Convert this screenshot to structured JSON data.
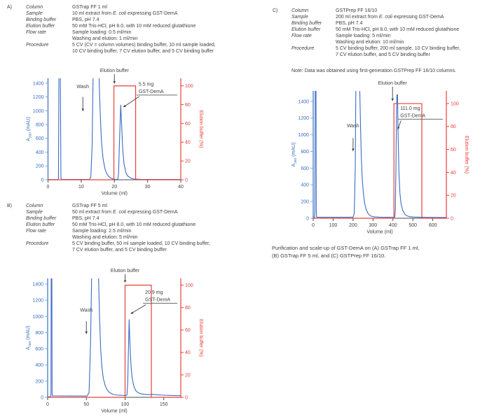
{
  "figure": {
    "caption_lines": [
      "Purification and scale-up of GST-DemA on (A) GSTrap FF 1 ml,",
      "(B) GSTrap FF 5 ml, and (C) GSTPrep FF 16/10."
    ]
  },
  "colors": {
    "blue": "#3a6cc3",
    "red": "#e8403a",
    "text": "#3f3f3f",
    "tick_blue": "#79b2d0",
    "underline": "#6b6b6b",
    "axis_dark": "#4a4a4a"
  },
  "panels": [
    {
      "label": "A)",
      "fields": [
        {
          "label": "Column",
          "lines": [
            "GSTrap FF 1 ml"
          ]
        },
        {
          "label": "Sample",
          "lines": [
            "10 ml extract from E. coli expressing GST-DemA"
          ]
        },
        {
          "label": "Binding buffer",
          "lines": [
            "PBS, pH 7.4"
          ]
        },
        {
          "label": "Elution buffer",
          "lines": [
            "50 mM Tris-HCl, pH 8.0, with 10 mM reduced glutathione"
          ]
        },
        {
          "label": "Flow rate",
          "lines": [
            "Sample loading: 0.5 ml/min",
            "Washing and elution: 1 ml/min"
          ]
        },
        {
          "label": "Procedure",
          "lines": [
            "5 CV (CV = column volumes) binding buffer, 10 ml sample loaded,",
            "10 CV binding buffer, 7 CV elution buffer, and 5 CV binding buffer"
          ]
        }
      ]
    },
    {
      "label": "B)",
      "fields": [
        {
          "label": "Column",
          "lines": [
            "GSTrap FF 5 ml"
          ]
        },
        {
          "label": "Sample",
          "lines": [
            "50 ml extract from E. coli expressing GST-DemA"
          ]
        },
        {
          "label": "Binding buffer",
          "lines": [
            "PBS, pH 7.4"
          ]
        },
        {
          "label": "Elution buffer",
          "lines": [
            "50 mM Tris-HCl, pH 8.0, with 10 mM reduced glutathione"
          ]
        },
        {
          "label": "Flow rate",
          "lines": [
            "Sample loading: 2.5 ml/min",
            "Washing and elution: 5 ml/min"
          ]
        },
        {
          "label": "Procedure",
          "lines": [
            "5 CV binding buffer, 50 ml sample loaded, 10 CV binding buffer,",
            "7 CV elution buffer, and 5 CV binding buffer"
          ]
        }
      ]
    },
    {
      "label": "C)",
      "fields": [
        {
          "label": "Column",
          "lines": [
            "GSTPrep FF 16/10"
          ]
        },
        {
          "label": "Sample",
          "lines": [
            "200 ml extract from E. coli expressing GST-DemA"
          ]
        },
        {
          "label": "Binding buffer",
          "lines": [
            "PBS, pH 7.4"
          ]
        },
        {
          "label": "Elution buffer",
          "lines": [
            "50 mM Tris-HCl, pH 8.0, with 10 mM reduced glutathione"
          ]
        },
        {
          "label": "Flow rate",
          "lines": [
            "Sample loading: 5 ml/min",
            "Washing and elution: 10 ml/min"
          ]
        },
        {
          "label": "Procedure",
          "lines": [
            "5 CV binding buffer, 200 ml sample, 10 CV binding buffer,",
            "7 CV elution buffer, and 5 CV binding buffer"
          ]
        }
      ],
      "note": "Note: Data was obtained using first-generation GSTPrep FF 16/10 columns."
    }
  ],
  "chart_data": [
    {
      "id": "A",
      "type": "line",
      "xlabel": "Volume (ml)",
      "ylabel_left": {
        "pre": "A",
        "sub": "280",
        "post": " (mAU)"
      },
      "ylabel_right": "Elution buffer (%)",
      "xlim": [
        0,
        40
      ],
      "xticks": [
        0,
        10,
        20,
        30,
        40
      ],
      "ylim_left": [
        0,
        1470
      ],
      "yticks_left": [
        0,
        200,
        400,
        600,
        800,
        1000,
        1200,
        1400
      ],
      "ylim_right": [
        0,
        108
      ],
      "yticks_right": [
        0,
        20,
        40,
        60,
        80,
        100
      ],
      "series": [
        {
          "name": "A280 absorbance",
          "axis": "left",
          "color_key": "blue",
          "points": [
            [
              0,
              3
            ],
            [
              3.0,
              3
            ],
            [
              3.15,
              15
            ],
            [
              3.3,
              1600
            ],
            [
              3.7,
              1600
            ],
            [
              3.9,
              20
            ],
            [
              4.1,
              4
            ],
            [
              12.5,
              4
            ],
            [
              12.9,
              40
            ],
            [
              13.3,
              500
            ],
            [
              13.6,
              1600
            ],
            [
              15.3,
              1600
            ],
            [
              15.7,
              1000
            ],
            [
              16.1,
              560
            ],
            [
              16.6,
              300
            ],
            [
              17.2,
              150
            ],
            [
              17.9,
              70
            ],
            [
              18.7,
              30
            ],
            [
              19.5,
              12
            ],
            [
              20.3,
              6
            ],
            [
              21.0,
              7
            ],
            [
              21.25,
              80
            ],
            [
              21.5,
              500
            ],
            [
              21.9,
              1080
            ],
            [
              22.2,
              780
            ],
            [
              22.5,
              450
            ],
            [
              22.9,
              230
            ],
            [
              23.4,
              110
            ],
            [
              24.0,
              55
            ],
            [
              24.8,
              28
            ],
            [
              25.6,
              14
            ],
            [
              26.6,
              9
            ],
            [
              28,
              6
            ],
            [
              32,
              5
            ],
            [
              40,
              4
            ]
          ]
        },
        {
          "name": "Elution buffer %",
          "axis": "right",
          "color_key": "red",
          "points": [
            [
              0,
              0
            ],
            [
              19.85,
              0
            ],
            [
              19.85,
              100
            ],
            [
              26.4,
              100
            ],
            [
              26.4,
              0
            ],
            [
              40,
              0
            ]
          ]
        }
      ],
      "annotations": {
        "wash": {
          "label": "Wash",
          "x": 10.5,
          "text_y": 1330,
          "arrow_from_y": 1200,
          "arrow_to_y": 990
        },
        "elution": {
          "label": "Elution buffer",
          "x": 20
        },
        "peak": {
          "lines": [
            "5.5 mg",
            "GST-DemA"
          ],
          "x": 27.3,
          "y": 1365,
          "arrow_x": 22.6,
          "arrow_y": 1050
        }
      }
    },
    {
      "id": "B",
      "type": "line",
      "xlabel": "Volume (ml)",
      "ylabel_left": {
        "pre": "A",
        "sub": "280",
        "post": " (mAU)"
      },
      "ylabel_right": "Elution buffer (%)",
      "xlim": [
        0,
        172
      ],
      "xticks": [
        0,
        50,
        100,
        150
      ],
      "ylim_left": [
        0,
        1470
      ],
      "yticks_left": [
        0,
        200,
        400,
        600,
        800,
        1000,
        1200,
        1400
      ],
      "ylim_right": [
        0,
        106
      ],
      "yticks_right": [
        0,
        20,
        40,
        60,
        80,
        100
      ],
      "series": [
        {
          "name": "A280 absorbance",
          "axis": "left",
          "color_key": "blue",
          "points": [
            [
              0,
              6
            ],
            [
              4.0,
              6
            ],
            [
              4.3,
              60
            ],
            [
              4.6,
              1600
            ],
            [
              5.4,
              1600
            ],
            [
              5.75,
              60
            ],
            [
              6.1,
              18
            ],
            [
              51,
              16
            ],
            [
              53.5,
              60
            ],
            [
              55.5,
              700
            ],
            [
              57,
              1600
            ],
            [
              65.5,
              1600
            ],
            [
              67,
              1000
            ],
            [
              68.5,
              600
            ],
            [
              70,
              380
            ],
            [
              72,
              230
            ],
            [
              74.5,
              140
            ],
            [
              77,
              90
            ],
            [
              80,
              58
            ],
            [
              84,
              38
            ],
            [
              89,
              28
            ],
            [
              95,
              24
            ],
            [
              101,
              22
            ],
            [
              102.5,
              30
            ],
            [
              103.5,
              200
            ],
            [
              104.5,
              640
            ],
            [
              105.3,
              960
            ],
            [
              106.2,
              700
            ],
            [
              107.5,
              420
            ],
            [
              109,
              250
            ],
            [
              111,
              150
            ],
            [
              113.5,
              88
            ],
            [
              116.5,
              58
            ],
            [
              120,
              44
            ],
            [
              125,
              37
            ],
            [
              131,
              33
            ],
            [
              136,
              36
            ],
            [
              141,
              31
            ],
            [
              148,
              27
            ],
            [
              158,
              23
            ],
            [
              172,
              20
            ]
          ]
        },
        {
          "name": "Elution buffer %",
          "axis": "right",
          "color_key": "red",
          "points": [
            [
              0,
              0
            ],
            [
              100,
              0
            ],
            [
              100,
              100
            ],
            [
              134,
              100
            ],
            [
              134,
              0
            ],
            [
              172,
              0
            ]
          ]
        }
      ],
      "annotations": {
        "wash": {
          "label": "Wash",
          "x": 50,
          "text_y": 1060,
          "arrow_from_y": 940,
          "arrow_to_y": 780
        },
        "elution": {
          "label": "Elution buffer",
          "x": 100
        },
        "peak": {
          "lines": [
            "20.9 mg",
            "GST-DemA"
          ],
          "x": 126,
          "y": 1280,
          "arrow_x": 107,
          "arrow_y": 1030
        }
      }
    },
    {
      "id": "C",
      "type": "line",
      "xlabel": "Volume (ml)",
      "ylabel_left": {
        "pre": "A",
        "sub": "280",
        "post": " (mAU)"
      },
      "ylabel_right": "Elution buffer (%)",
      "xlim": [
        0,
        668
      ],
      "xticks": [
        0,
        100,
        200,
        300,
        400,
        500,
        600
      ],
      "ylim_left": [
        0,
        1525
      ],
      "yticks_left": [
        0,
        200,
        400,
        600,
        800,
        1000,
        1200,
        1400
      ],
      "ylim_right": [
        0,
        111
      ],
      "yticks_right": [
        0,
        20,
        40,
        60,
        80,
        100
      ],
      "series": [
        {
          "name": "A280 absorbance",
          "axis": "left",
          "color_key": "blue",
          "points": [
            [
              0,
              10
            ],
            [
              7,
              10
            ],
            [
              8.5,
              80
            ],
            [
              10,
              1600
            ],
            [
              14,
              1600
            ],
            [
              15.5,
              80
            ],
            [
              17,
              12
            ],
            [
              200,
              12
            ],
            [
              206,
              60
            ],
            [
              211,
              600
            ],
            [
              214,
              1600
            ],
            [
              233,
              1600
            ],
            [
              237,
              1150
            ],
            [
              241,
              750
            ],
            [
              246,
              470
            ],
            [
              252,
              290
            ],
            [
              258,
              180
            ],
            [
              265,
              110
            ],
            [
              273,
              65
            ],
            [
              282,
              38
            ],
            [
              292,
              24
            ],
            [
              307,
              16
            ],
            [
              332,
              13
            ],
            [
              405,
              11
            ],
            [
              409,
              15
            ],
            [
              412,
              100
            ],
            [
              415,
              600
            ],
            [
              418,
              1300
            ],
            [
              420,
              1480
            ],
            [
              423,
              1480
            ],
            [
              426,
              1000
            ],
            [
              430,
              560
            ],
            [
              435,
              300
            ],
            [
              441,
              170
            ],
            [
              449,
              95
            ],
            [
              459,
              50
            ],
            [
              471,
              28
            ],
            [
              485,
              18
            ],
            [
              507,
              14
            ],
            [
              545,
              12
            ],
            [
              590,
              10
            ],
            [
              668,
              9
            ]
          ]
        },
        {
          "name": "Elution buffer %",
          "axis": "right",
          "color_key": "red",
          "points": [
            [
              0,
              0
            ],
            [
              405,
              0
            ],
            [
              405,
              100
            ],
            [
              545,
              100
            ],
            [
              545,
              0
            ],
            [
              668,
              0
            ]
          ]
        }
      ],
      "annotations": {
        "wash": {
          "label": "Wash",
          "x": 200,
          "text_y": 1090,
          "arrow_from_y": 960,
          "arrow_to_y": 800
        },
        "elution": {
          "label": "Elution buffer",
          "x": 398
        },
        "peak": {
          "lines": [
            "111.0 mg",
            "GST-DemA"
          ],
          "x": 437,
          "y": 1300,
          "arrow_x": 423,
          "arrow_y": 1060
        }
      }
    }
  ]
}
